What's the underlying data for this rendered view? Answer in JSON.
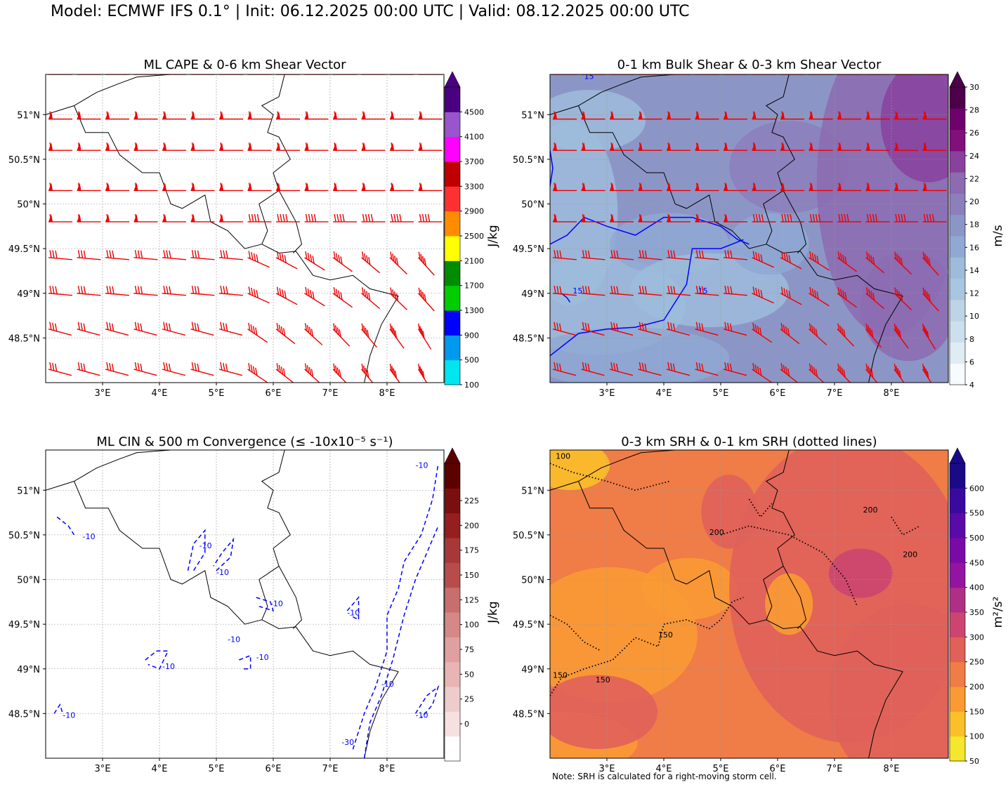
{
  "suptitle": "Model: ECMWF IFS 0.1° | Init: 06.12.2025 00:00 UTC | Valid: 08.12.2025 00:00 UTC",
  "note": "Note: SRH is calculated for a right-moving storm cell.",
  "chart_data": [
    {
      "type": "heatmap",
      "title": "ML CAPE & 0-6 km Shear Vector",
      "colorbar_label": "J/kg",
      "colorbar_ticks": [
        "100",
        "500",
        "900",
        "1300",
        "1700",
        "2100",
        "2500",
        "2900",
        "3300",
        "3700",
        "4100",
        "4500"
      ],
      "colorbar_colors": [
        "#00e5ee",
        "#0099ee",
        "#0000ff",
        "#00cc00",
        "#008c00",
        "#ffff00",
        "#ff8c00",
        "#ff3030",
        "#c00000",
        "#ff00ff",
        "#9955cc",
        "#4b0082"
      ],
      "xticks": [
        "3°E",
        "4°E",
        "5°E",
        "6°E",
        "7°E",
        "8°E"
      ],
      "yticks": [
        "48.5°N",
        "49°N",
        "49.5°N",
        "50°N",
        "50.5°N",
        "51°N"
      ],
      "field_color": "#ffffff",
      "barb_color": "#ee0000",
      "grid": true
    },
    {
      "type": "heatmap",
      "title": "0-1 km Bulk Shear & 0-3 km Shear Vector",
      "colorbar_label": "m/s",
      "colorbar_ticks": [
        "4",
        "6",
        "8",
        "10",
        "12",
        "14",
        "16",
        "18",
        "20",
        "22",
        "24",
        "26",
        "28",
        "30"
      ],
      "colorbar_colors": [
        "#f7fbfd",
        "#e0ecf4",
        "#cddfec",
        "#bfd3e6",
        "#a9c6e1",
        "#9ebcda",
        "#8fa9d3",
        "#8c96c6",
        "#8c7fbb",
        "#8c6bb1",
        "#88419d",
        "#810f7c",
        "#6e016b",
        "#4d004b"
      ],
      "contour_label": "15",
      "contour_color": "#0000ff",
      "xticks": [
        "3°E",
        "4°E",
        "5°E",
        "6°E",
        "7°E",
        "8°E"
      ],
      "yticks": [
        "48.5°N",
        "49°N",
        "49.5°N",
        "50°N",
        "50.5°N",
        "51°N"
      ],
      "barb_color": "#ee0000",
      "grid": true
    },
    {
      "type": "heatmap",
      "title": "ML CIN & 500 m Convergence (≤ -10x10⁻⁵ s⁻¹)",
      "colorbar_label": "J/kg",
      "colorbar_ticks": [
        "0",
        "25",
        "50",
        "75",
        "100",
        "125",
        "150",
        "175",
        "200",
        "225"
      ],
      "colorbar_colors": [
        "#ffffff",
        "#f6e0e0",
        "#efcccc",
        "#e8b4b4",
        "#e0a0a0",
        "#d48888",
        "#c86e6e",
        "#b84c4c",
        "#a83838",
        "#961e1e",
        "#7a0f0f",
        "#5c0000"
      ],
      "contour_labels": [
        "-10",
        "-30"
      ],
      "contour_color": "#0000ff",
      "xticks": [
        "3°E",
        "4°E",
        "5°E",
        "6°E",
        "7°E",
        "8°E"
      ],
      "yticks": [
        "48.5°N",
        "49°N",
        "49.5°N",
        "50°N",
        "50.5°N",
        "51°N"
      ],
      "grid": true
    },
    {
      "type": "heatmap",
      "title": "0-3 km SRH & 0-1 km SRH (dotted lines)",
      "colorbar_label": "m²/s²",
      "colorbar_ticks": [
        "50",
        "100",
        "150",
        "200",
        "250",
        "300",
        "350",
        "400",
        "450",
        "500",
        "550",
        "600"
      ],
      "colorbar_colors": [
        "#f5e62e",
        "#fbbf2a",
        "#f99a34",
        "#f07c47",
        "#e0605a",
        "#cc4570",
        "#b02f86",
        "#9314a0",
        "#7a0aa8",
        "#5a0aa8",
        "#3a0aa0",
        "#1a0a88"
      ],
      "contour_labels": [
        "100",
        "150",
        "200"
      ],
      "contour_color": "#000000",
      "xticks": [
        "3°E",
        "4°E",
        "5°E",
        "6°E",
        "7°E",
        "8°E"
      ],
      "yticks": [
        "48.5°N",
        "49°N",
        "49.5°N",
        "50°N",
        "50.5°N",
        "51°N"
      ],
      "grid": true
    }
  ]
}
